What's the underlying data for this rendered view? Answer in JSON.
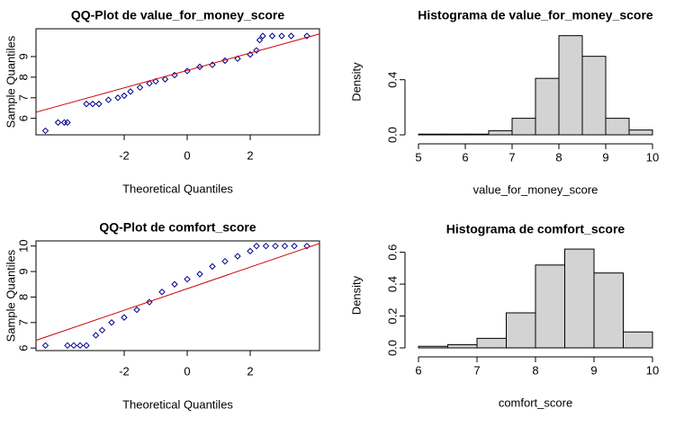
{
  "chart_data": [
    {
      "type": "qq",
      "title": "QQ-Plot de value_for_money_score",
      "x_label": "Theoretical Quantiles",
      "y_label": "Sample Quantiles",
      "x": [
        -4.5,
        -4.1,
        -3.9,
        -3.8,
        -3.2,
        -3.0,
        -2.8,
        -2.5,
        -2.2,
        -2.0,
        -1.8,
        -1.5,
        -1.2,
        -1.0,
        -0.7,
        -0.4,
        0,
        0.4,
        0.8,
        1.2,
        1.6,
        2.0,
        2.2,
        2.3,
        2.4,
        2.7,
        3.0,
        3.3,
        3.8
      ],
      "y": [
        5.4,
        5.8,
        5.8,
        5.8,
        6.7,
        6.7,
        6.7,
        6.9,
        7.0,
        7.1,
        7.3,
        7.5,
        7.7,
        7.8,
        7.9,
        8.1,
        8.3,
        8.5,
        8.6,
        8.8,
        8.9,
        9.1,
        9.3,
        9.8,
        10.0,
        10.0,
        10.0,
        10.0,
        10.0
      ],
      "color": "#00008b",
      "reference_line": {
        "x": [
          -4.8,
          4.2
        ],
        "y": [
          6.3,
          10.1
        ],
        "color": "#cc0000"
      },
      "xlim": [
        -4.8,
        4.2
      ],
      "ylim": [
        5.2,
        10.35
      ],
      "xticks": [
        -2,
        0,
        2
      ],
      "yticks": [
        6,
        7,
        8,
        9
      ]
    },
    {
      "type": "histogram",
      "title": "Histograma de value_for_money_score",
      "x_label": "value_for_money_score",
      "y_label": "Density",
      "bins": [
        5,
        5.5,
        6,
        6.5,
        7,
        7.5,
        8,
        8.5,
        9,
        9.5,
        10
      ],
      "values": [
        0.005,
        0.005,
        0.005,
        0.03,
        0.12,
        0.41,
        0.72,
        0.57,
        0.12,
        0.035
      ],
      "color": "#d3d3d3",
      "xlim": [
        5,
        10
      ],
      "ylim": [
        0,
        0.77
      ],
      "xticks": [
        5,
        6,
        7,
        8,
        9,
        10
      ],
      "yticks": [
        {
          "value": 0,
          "label": "0.0"
        },
        0.4
      ]
    },
    {
      "type": "qq",
      "title": "QQ-Plot de comfort_score",
      "x_label": "Theoretical Quantiles",
      "y_label": "Sample Quantiles",
      "x": [
        -4.5,
        -3.8,
        -3.6,
        -3.4,
        -3.2,
        -2.9,
        -2.7,
        -2.4,
        -2.0,
        -1.6,
        -1.2,
        -0.8,
        -0.4,
        0,
        0.4,
        0.8,
        1.2,
        1.6,
        2.0,
        2.2,
        2.5,
        2.8,
        3.1,
        3.4,
        3.8
      ],
      "y": [
        6.1,
        6.1,
        6.1,
        6.1,
        6.1,
        6.5,
        6.7,
        7.0,
        7.2,
        7.5,
        7.8,
        8.2,
        8.5,
        8.7,
        8.9,
        9.2,
        9.4,
        9.6,
        9.8,
        10.0,
        10.0,
        10.0,
        10.0,
        10.0,
        10.0
      ],
      "color": "#00008b",
      "reference_line": {
        "x": [
          -4.8,
          4.2
        ],
        "y": [
          6.3,
          10.1
        ],
        "color": "#cc0000"
      },
      "xlim": [
        -4.8,
        4.2
      ],
      "ylim": [
        5.9,
        10.2
      ],
      "xticks": [
        -2,
        0,
        2
      ],
      "yticks": [
        6,
        7,
        8,
        9,
        10
      ]
    },
    {
      "type": "histogram",
      "title": "Histograma de comfort_score",
      "x_label": "comfort_score",
      "y_label": "Density",
      "bins": [
        6,
        6.5,
        7,
        7.5,
        8,
        8.5,
        9,
        9.5,
        10
      ],
      "values": [
        0.01,
        0.02,
        0.06,
        0.22,
        0.52,
        0.62,
        0.47,
        0.1
      ],
      "color": "#d3d3d3",
      "xlim": [
        6,
        10
      ],
      "ylim": [
        0,
        0.66
      ],
      "xticks": [
        6,
        7,
        8,
        9,
        10
      ],
      "yticks": [
        {
          "value": 0,
          "label": "0.0"
        },
        0.2,
        0.4,
        0.6
      ]
    }
  ]
}
